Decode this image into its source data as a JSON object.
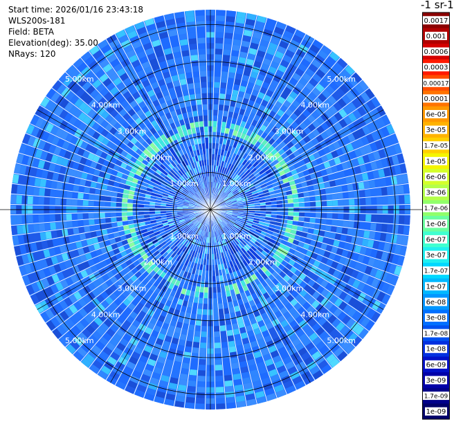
{
  "header": {
    "start_time": "Start time: 2026/01/16 23:43:18",
    "instrument": "WLS200s-181",
    "field": "Field: BETA",
    "elevation": "Elevation(deg): 35.00",
    "nrays": "NRays: 120"
  },
  "colorbar": {
    "title": "-1 sr-1",
    "labels": [
      "0.0017",
      "0.001",
      "0.0006",
      "0.0003",
      "0.00017",
      "0.0001",
      "6e-05",
      "3e-05",
      "1.7e-05",
      "1e-05",
      "6e-06",
      "3e-06",
      "1.7e-06",
      "1e-06",
      "6e-07",
      "3e-07",
      "1.7e-07",
      "1e-07",
      "6e-08",
      "3e-08",
      "1.7e-08",
      "1e-08",
      "6e-09",
      "3e-09",
      "1.7e-09",
      "1e-09"
    ],
    "colors": [
      "#8b0000",
      "#b00000",
      "#d40000",
      "#ff1a00",
      "#ff4d00",
      "#ff7300",
      "#ff9900",
      "#ffb300",
      "#ffd000",
      "#f5f500",
      "#d4ff2b",
      "#b4ff4a",
      "#90ff6a",
      "#6affa0",
      "#40ffd0",
      "#20f0f0",
      "#00d8ff",
      "#00b8ff",
      "#0096ff",
      "#0070ff",
      "#0050f0",
      "#0030e0",
      "#0010c8",
      "#0000a8",
      "#00008a",
      "#00006a"
    ]
  },
  "chart_data": {
    "type": "heatmap",
    "projection": "polar PPI",
    "field": "BETA",
    "elevation_deg": 35.0,
    "n_rays": 120,
    "range_rings_km": [
      1.0,
      2.0,
      3.0,
      4.0,
      5.0
    ],
    "ring_labels": [
      "1.00km",
      "2.00km",
      "3.00km",
      "4.00km",
      "5.00km"
    ],
    "max_range_km": 5.4,
    "color_scale": "log",
    "color_range": [
      1e-09,
      0.0017
    ],
    "dominant_value": 3e-08,
    "enhanced_band": {
      "range_km": [
        2.1,
        2.4
      ],
      "value": 1.7e-06
    }
  }
}
